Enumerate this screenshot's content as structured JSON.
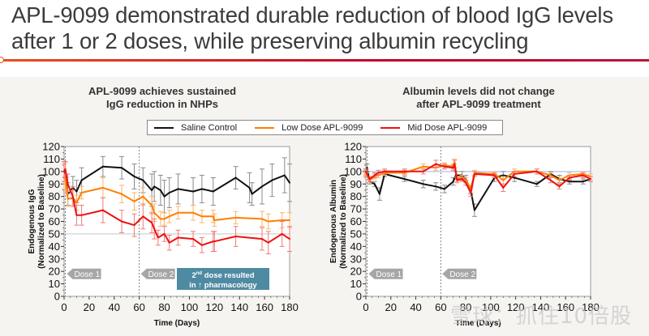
{
  "slide": {
    "title_line1": "APL-9099 demonstrated durable reduction of blood IgG levels",
    "title_line2": "after 1 or 2 doses, while preserving albumin recycling",
    "accent_colors": {
      "rule_start": "#e8501e",
      "rule_end": "#b5183a"
    }
  },
  "legend": {
    "items": [
      {
        "label": "Saline Control",
        "color": "#111111"
      },
      {
        "label": "Low Dose APL-9099",
        "color": "#ff7f00"
      },
      {
        "label": "Mid Dose APL-9099",
        "color": "#ee1111"
      }
    ]
  },
  "annotations": {
    "dose1": "Dose 1",
    "dose2": "Dose 2",
    "note_prefix": "2",
    "note_sup": "nd",
    "note_line1_rest": " dose resulted",
    "note_line2": "in ↑ pharmacology",
    "note_color": "#4f8aa3"
  },
  "watermark": "雪球：抓住10倍股",
  "chart_data": [
    {
      "type": "line",
      "title_line1": "APL-9099 achieves sustained",
      "title_line2": "IgG reduction in NHPs",
      "xlabel": "Time (Days)",
      "ylabel_line1": "Endogenous IgG",
      "ylabel_line2": "(Normalized to Baseline)",
      "xlim": [
        0,
        180
      ],
      "ylim": [
        0,
        120
      ],
      "xticks": [
        0,
        20,
        40,
        60,
        80,
        100,
        120,
        140,
        160,
        180
      ],
      "yticks": [
        0,
        10,
        20,
        30,
        40,
        50,
        60,
        70,
        80,
        90,
        100,
        110,
        120
      ],
      "reference_line": 50,
      "dose_days": [
        1,
        60
      ],
      "grid": false,
      "error_bars": true,
      "series": [
        {
          "name": "Saline Control",
          "color": "#111111",
          "x": [
            0,
            1,
            3,
            7,
            10,
            14,
            31,
            46,
            56,
            63,
            70,
            72,
            77,
            80,
            84,
            91,
            103,
            110,
            119,
            137,
            148,
            150,
            158,
            166,
            176,
            180
          ],
          "y": [
            100,
            99,
            82,
            87,
            84,
            93,
            104,
            103,
            96,
            93,
            85,
            88,
            85,
            80,
            83,
            86,
            84,
            86,
            84,
            95,
            87,
            82,
            88,
            93,
            97,
            91
          ],
          "err": [
            8,
            9,
            9,
            9,
            9,
            10,
            8,
            9,
            10,
            10,
            13,
            12,
            12,
            13,
            12,
            12,
            11,
            11,
            11,
            9,
            12,
            9,
            14,
            13,
            14,
            15
          ]
        },
        {
          "name": "Low Dose APL-9099",
          "color": "#ff7f00",
          "x": [
            0,
            1,
            3,
            7,
            10,
            14,
            31,
            46,
            56,
            63,
            70,
            72,
            77,
            80,
            84,
            91,
            103,
            110,
            119,
            120,
            137,
            158,
            163,
            174,
            180
          ],
          "y": [
            96,
            95,
            78,
            79,
            75,
            83,
            87,
            82,
            76,
            80,
            73,
            67,
            62,
            62,
            64,
            67,
            67,
            64,
            64,
            61,
            63,
            62,
            60,
            61,
            61
          ],
          "err": [
            10,
            12,
            6,
            6,
            6,
            5,
            8,
            7,
            7,
            7,
            7,
            7,
            6,
            5,
            5,
            5,
            6,
            5,
            5,
            5,
            5,
            6,
            6,
            6,
            6
          ]
        },
        {
          "name": "Mid Dose APL-9099",
          "color": "#ee1111",
          "x": [
            0,
            1,
            3,
            7,
            10,
            14,
            31,
            46,
            56,
            63,
            70,
            72,
            75,
            80,
            84,
            91,
            103,
            110,
            119,
            120,
            137,
            158,
            163,
            174,
            180
          ],
          "y": [
            100,
            102,
            90,
            80,
            65,
            65,
            69,
            60,
            57,
            64,
            59,
            54,
            47,
            50,
            43,
            47,
            46,
            41,
            44,
            44,
            48,
            46,
            43,
            50,
            46
          ],
          "err": [
            8,
            6,
            8,
            8,
            8,
            8,
            10,
            9,
            9,
            10,
            8,
            8,
            6,
            6,
            6,
            6,
            6,
            6,
            8,
            8,
            8,
            9,
            9,
            10,
            10
          ]
        }
      ]
    },
    {
      "type": "line",
      "title_line1": "Albumin levels did not change",
      "title_line2": "after APL-9099 treatment",
      "xlabel": "Time (Days)",
      "ylabel_line1": "Endogenous Albumin",
      "ylabel_line2": "(Normalized to Baseline)",
      "xlim": [
        0,
        180
      ],
      "ylim": [
        0,
        120
      ],
      "xticks": [
        0,
        20,
        40,
        60,
        80,
        100,
        120,
        140,
        160,
        180
      ],
      "yticks": [
        0,
        10,
        20,
        30,
        40,
        50,
        60,
        70,
        80,
        90,
        100,
        110,
        120
      ],
      "reference_line": 100,
      "dose_days": [
        1,
        60
      ],
      "grid": false,
      "error_bars": true,
      "series": [
        {
          "name": "Saline Control",
          "color": "#111111",
          "x": [
            0,
            1,
            3,
            7,
            11,
            15,
            31,
            46,
            56,
            63,
            70,
            72,
            77,
            80,
            84,
            87,
            103,
            110,
            119,
            137,
            148,
            155,
            163,
            174,
            180
          ],
          "y": [
            99,
            103,
            92,
            90,
            82,
            98,
            94,
            90,
            88,
            86,
            92,
            97,
            97,
            94,
            85,
            69,
            95,
            97,
            95,
            90,
            98,
            94,
            92,
            92,
            94
          ],
          "err": [
            3,
            3,
            2,
            2,
            5,
            2,
            2,
            3,
            3,
            3,
            3,
            3,
            3,
            3,
            3,
            5,
            3,
            3,
            3,
            2,
            2,
            3,
            2,
            2,
            2
          ]
        },
        {
          "name": "Low Dose APL-9099",
          "color": "#ff7f00",
          "x": [
            0,
            1,
            3,
            7,
            10,
            15,
            31,
            46,
            56,
            63,
            70,
            71,
            73,
            77,
            80,
            84,
            87,
            103,
            110,
            119,
            137,
            148,
            155,
            163,
            174,
            180
          ],
          "y": [
            99,
            97,
            93,
            96,
            97,
            99,
            99,
            104,
            103,
            105,
            104,
            108,
            94,
            95,
            93,
            86,
            99,
            98,
            93,
            100,
            100,
            97,
            93,
            97,
            98,
            96
          ],
          "err": [
            2,
            2,
            2,
            2,
            2,
            2,
            2,
            2,
            2,
            2,
            2,
            2,
            2,
            2,
            2,
            3,
            2,
            2,
            3,
            2,
            2,
            2,
            3,
            2,
            2,
            2
          ]
        },
        {
          "name": "Mid Dose APL-9099",
          "color": "#ee1111",
          "x": [
            0,
            1,
            3,
            7,
            10,
            15,
            31,
            46,
            56,
            63,
            70,
            71,
            73,
            77,
            80,
            84,
            87,
            103,
            110,
            119,
            137,
            148,
            155,
            163,
            174,
            180
          ],
          "y": [
            100,
            98,
            94,
            97,
            99,
            100,
            100,
            100,
            106,
            104,
            103,
            106,
            93,
            94,
            91,
            83,
            98,
            97,
            87,
            98,
            100,
            93,
            88,
            95,
            97,
            94
          ],
          "err": [
            2,
            2,
            2,
            2,
            2,
            2,
            2,
            2,
            3,
            2,
            2,
            3,
            2,
            2,
            2,
            3,
            2,
            2,
            3,
            2,
            2,
            2,
            2,
            2,
            2,
            2
          ]
        }
      ]
    }
  ]
}
